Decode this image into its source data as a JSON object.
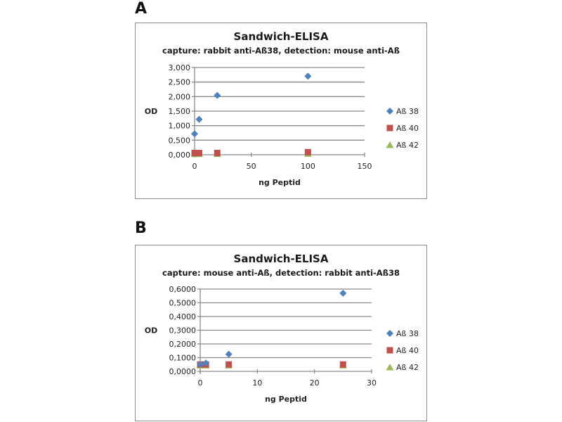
{
  "chart_data": [
    {
      "panel_label": "A",
      "type": "scatter",
      "title": "Sandwich-ELISA",
      "subtitle": "capture: rabbit anti-Aß38, detection: mouse anti-Aß",
      "xlabel": "ng Peptid",
      "ylabel": "OD",
      "xlim": [
        0,
        150
      ],
      "ylim": [
        0,
        3
      ],
      "x_ticks": [
        0,
        50,
        100,
        150
      ],
      "x_tick_labels": [
        "0",
        "50",
        "100",
        "150"
      ],
      "y_ticks": [
        0,
        0.5,
        1,
        1.5,
        2,
        2.5,
        3
      ],
      "y_tick_labels": [
        "0,000",
        "0,500",
        "1,000",
        "1,500",
        "2,000",
        "2,500",
        "3,000"
      ],
      "grid": "horizontal",
      "legend_position": "right",
      "series": [
        {
          "name": "Aß 38",
          "marker": "diamond",
          "color": "#4f81bd",
          "x": [
            0,
            4,
            20,
            100
          ],
          "y": [
            0.72,
            1.22,
            2.04,
            2.7
          ]
        },
        {
          "name": "Aß 40",
          "marker": "square",
          "color": "#c0504d",
          "x": [
            0,
            1,
            4,
            20,
            100
          ],
          "y": [
            0.06,
            0.06,
            0.06,
            0.06,
            0.09
          ]
        },
        {
          "name": "Aß 42",
          "marker": "triangle",
          "color": "#9bbb59",
          "x": [
            0,
            1,
            4,
            20,
            100
          ],
          "y": [
            0.03,
            0.03,
            0.03,
            0.03,
            0.04
          ]
        }
      ]
    },
    {
      "panel_label": "B",
      "type": "scatter",
      "title": "Sandwich-ELISA",
      "subtitle": "capture: mouse anti-Aß, detection: rabbit anti-Aß38",
      "xlabel": "ng Peptid",
      "ylabel": "OD",
      "xlim": [
        0,
        30
      ],
      "ylim": [
        0,
        0.6
      ],
      "x_ticks": [
        0,
        10,
        20,
        30
      ],
      "x_tick_labels": [
        "0",
        "10",
        "20",
        "30"
      ],
      "y_ticks": [
        0,
        0.1,
        0.2,
        0.3,
        0.4,
        0.5,
        0.6
      ],
      "y_tick_labels": [
        "0,0000",
        "0,1000",
        "0,2000",
        "0,3000",
        "0,4000",
        "0,5000",
        "0,6000"
      ],
      "grid": "horizontal",
      "legend_position": "right",
      "series": [
        {
          "name": "Aß 38",
          "marker": "diamond",
          "color": "#4f81bd",
          "x": [
            0,
            1,
            5,
            25
          ],
          "y": [
            0.05,
            0.06,
            0.125,
            0.57
          ]
        },
        {
          "name": "Aß 40",
          "marker": "square",
          "color": "#c0504d",
          "x": [
            0,
            1,
            5,
            25
          ],
          "y": [
            0.05,
            0.05,
            0.05,
            0.05
          ]
        },
        {
          "name": "Aß 42",
          "marker": "triangle",
          "color": "#9bbb59",
          "x": [
            0,
            1,
            5,
            25
          ],
          "y": [
            0.045,
            0.045,
            0.045,
            0.045
          ]
        }
      ]
    }
  ]
}
